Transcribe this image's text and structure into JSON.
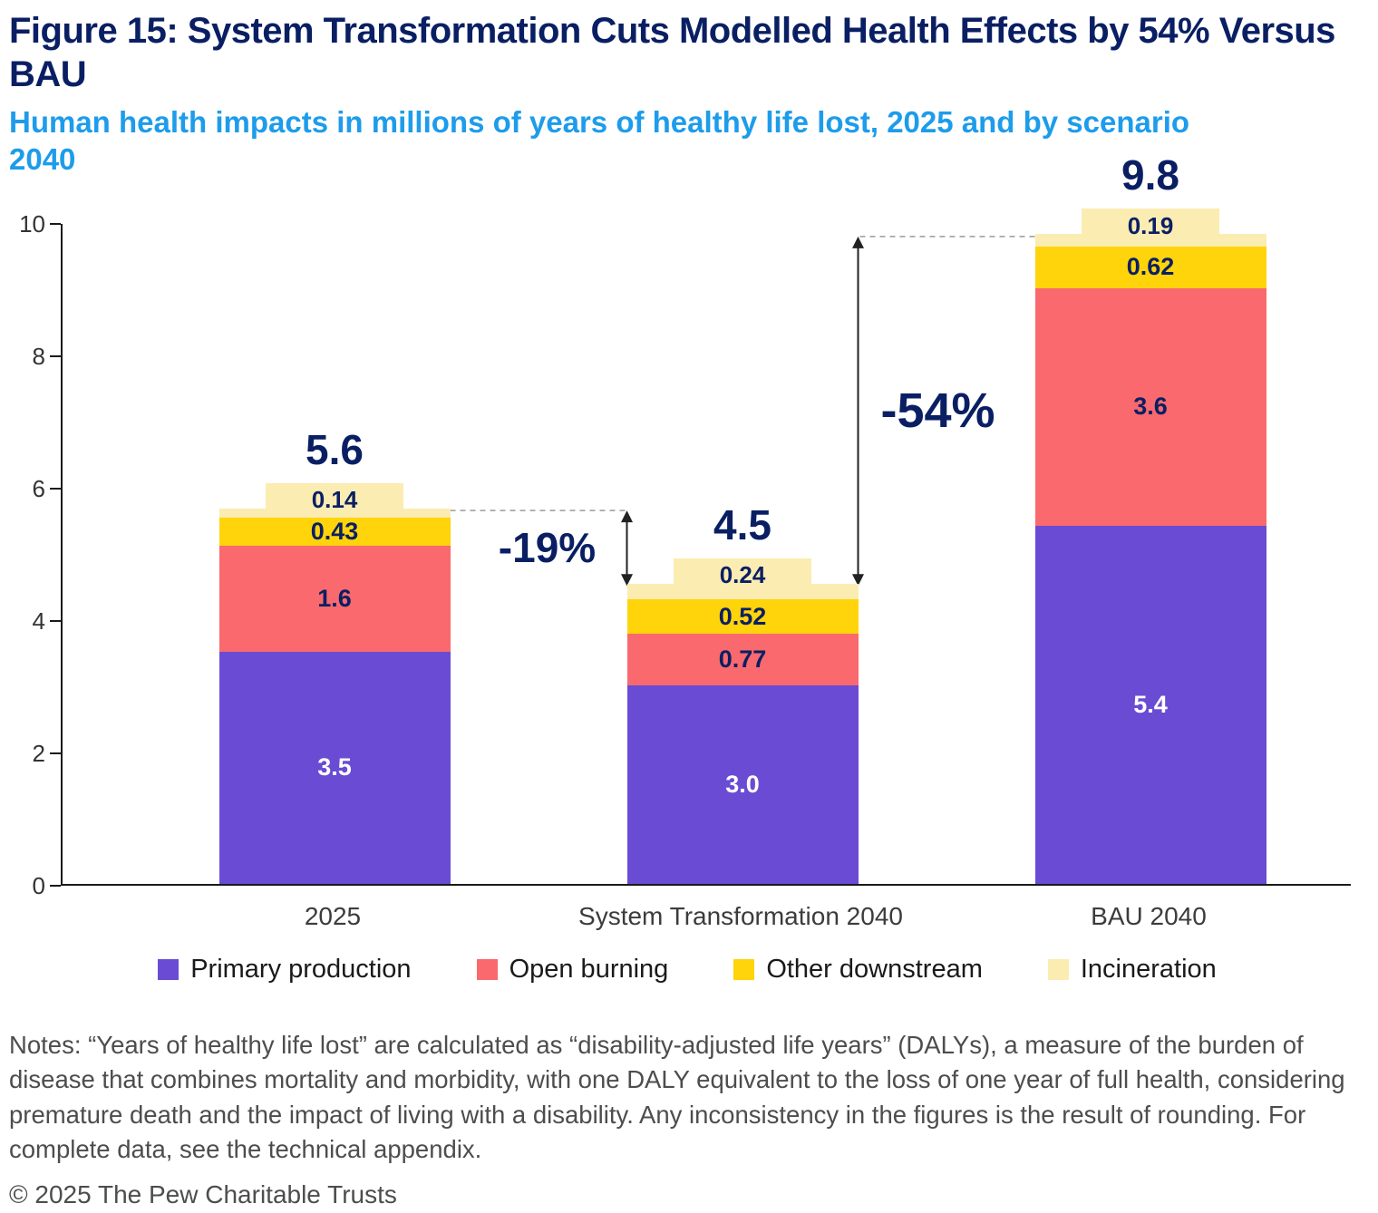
{
  "chart_data": {
    "type": "bar",
    "stacked": true,
    "title": "Figure 15: System Transformation Cuts Modelled Health Effects by 54% Versus BAU",
    "subtitle": "Human health impacts in millions of years of healthy life lost, 2025 and by scenario 2040",
    "categories": [
      "2025",
      "System Transformation 2040",
      "BAU 2040"
    ],
    "series": [
      {
        "name": "Primary production",
        "color": "#6a4bd4",
        "values": [
          3.5,
          3.0,
          5.4
        ],
        "labels": [
          "3.5",
          "3.0",
          "5.4"
        ]
      },
      {
        "name": "Open burning",
        "color": "#f9696e",
        "values": [
          1.6,
          0.77,
          3.6
        ],
        "labels": [
          "1.6",
          "0.77",
          "3.6"
        ]
      },
      {
        "name": "Other downstream",
        "color": "#ffd40a",
        "values": [
          0.43,
          0.52,
          0.62
        ],
        "labels": [
          "0.43",
          "0.52",
          "0.62"
        ]
      },
      {
        "name": "Incineration",
        "color": "#fbecb2",
        "values": [
          0.14,
          0.24,
          0.19
        ],
        "labels": [
          "0.14",
          "0.24",
          "0.19"
        ]
      }
    ],
    "totals": [
      "5.6",
      "4.5",
      "9.8"
    ],
    "ylim": [
      0,
      10
    ],
    "yticks": [
      0,
      2,
      4,
      6,
      8,
      10
    ],
    "grid": false,
    "legend_position": "bottom",
    "annotations": [
      {
        "label": "-19%",
        "from_category": 0,
        "to_category": 1
      },
      {
        "label": "-54%",
        "from_category": 2,
        "to_category": 1
      }
    ]
  },
  "notes": "Notes: “Years of healthy life lost” are calculated as “disability-adjusted life years” (DALYs), a measure of the burden of disease that combines mortality and morbidity, with one DALY equivalent to the loss of one year of full health, considering premature death and the impact of living with a disability. Any inconsistency in the figures is the result of rounding. For complete data, see the technical appendix.",
  "copyright": "© 2025 The Pew Charitable Trusts",
  "colors": {
    "title_navy": "#0a1f63",
    "subtitle_blue": "#1d9ceb",
    "notes_gray": "#4d4d4d"
  }
}
